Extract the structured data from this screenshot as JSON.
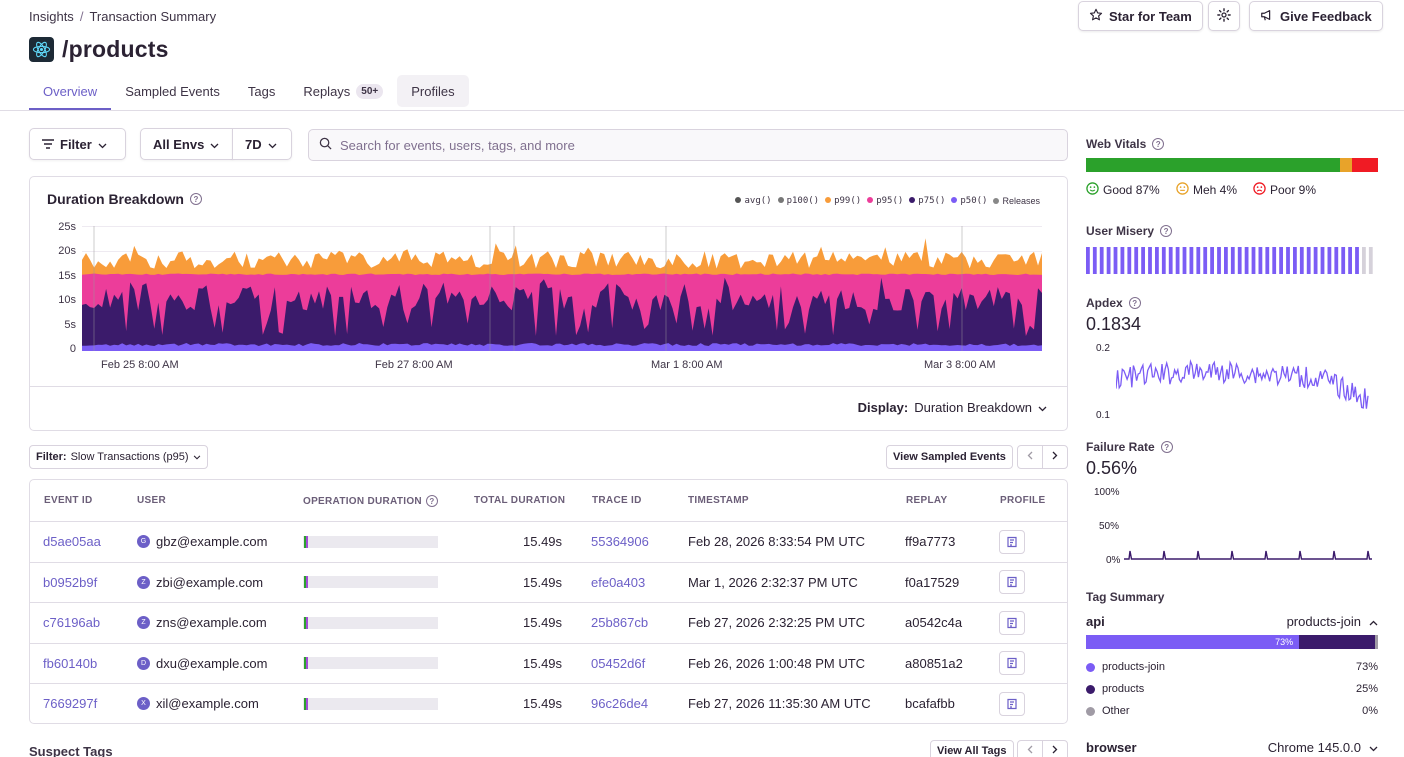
{
  "breadcrumb": {
    "parent": "Insights",
    "separator": "/",
    "current": "Transaction Summary"
  },
  "page": {
    "title": "/products"
  },
  "header_buttons": {
    "star": "Star for Team",
    "feedback": "Give Feedback"
  },
  "tabs": [
    {
      "label": "Overview"
    },
    {
      "label": "Sampled Events"
    },
    {
      "label": "Tags"
    },
    {
      "label": "Replays",
      "badge": "50+"
    },
    {
      "label": "Profiles"
    }
  ],
  "filters": {
    "filter": "Filter",
    "env": "All Envs",
    "period": "7D",
    "search_placeholder": "Search for events, users, tags, and more"
  },
  "chart": {
    "title": "Duration Breakdown",
    "display_label": "Display:",
    "display_value": "Duration Breakdown",
    "legend": [
      "avg()",
      "p100()",
      "p99()",
      "p95()",
      "p75()",
      "p50()",
      "Releases"
    ],
    "colors": {
      "avg": "#555555",
      "p100": "#777777",
      "p99": "#f89c3a",
      "p95": "#ec3d9a",
      "p75": "#3b1b6b",
      "p50": "#7b5cf5",
      "releases": "#888888"
    }
  },
  "chart_data": {
    "type": "area",
    "title": "Duration Breakdown",
    "y_ticks": [
      "25s",
      "20s",
      "15s",
      "10s",
      "5s",
      "0"
    ],
    "x_ticks": [
      "Feb 25 8:00 AM",
      "Feb 27 8:00 AM",
      "Mar 1 8:00 AM",
      "Mar 3 8:00 AM"
    ],
    "ylim": [
      0,
      25
    ],
    "series": [
      {
        "name": "p99()",
        "approx_level": 17
      },
      {
        "name": "p95()",
        "approx_level": 15
      },
      {
        "name": "p75()",
        "approx_level": 6
      },
      {
        "name": "p50()",
        "approx_level": 1
      }
    ]
  },
  "table": {
    "filter_label": "Filter:",
    "filter_value": "Slow Transactions (p95)",
    "view_button": "View Sampled Events",
    "headers": [
      "Event ID",
      "User",
      "Operation Duration",
      "Total Duration",
      "Trace ID",
      "Timestamp",
      "Replay",
      "Profile"
    ],
    "rows": [
      {
        "event_id": "d5ae05aa",
        "avatar": "G",
        "user": "gbz@example.com",
        "total": "15.49s",
        "trace": "55364906",
        "timestamp": "Feb 28, 2026 8:33:54 PM UTC",
        "replay": "ff9a7773"
      },
      {
        "event_id": "b0952b9f",
        "avatar": "Z",
        "user": "zbi@example.com",
        "total": "15.49s",
        "trace": "efe0a403",
        "timestamp": "Mar 1, 2026 2:32:37 PM UTC",
        "replay": "f0a17529"
      },
      {
        "event_id": "c76196ab",
        "avatar": "Z",
        "user": "zns@example.com",
        "total": "15.49s",
        "trace": "25b867cb",
        "timestamp": "Feb 27, 2026 2:32:25 PM UTC",
        "replay": "a0542c4a"
      },
      {
        "event_id": "fb60140b",
        "avatar": "D",
        "user": "dxu@example.com",
        "total": "15.49s",
        "trace": "05452d6f",
        "timestamp": "Feb 26, 2026 1:00:48 PM UTC",
        "replay": "a80851a2"
      },
      {
        "event_id": "7669297f",
        "avatar": "X",
        "user": "xil@example.com",
        "total": "15.49s",
        "trace": "96c26de4",
        "timestamp": "Feb 27, 2026 11:35:30 AM UTC",
        "replay": "bcafafbb"
      }
    ]
  },
  "suspect": {
    "title": "Suspect Tags",
    "button": "View All Tags"
  },
  "sidebar": {
    "web_vitals": {
      "label": "Web Vitals",
      "good": "Good 87%",
      "meh": "Meh 4%",
      "poor": "Poor 9%",
      "good_pct": 87,
      "meh_pct": 4,
      "poor_pct": 9
    },
    "user_misery": {
      "label": "User Misery"
    },
    "apdex": {
      "label": "Apdex",
      "value": "0.1834",
      "y_high": "0.2",
      "y_low": "0.1"
    },
    "failure_rate": {
      "label": "Failure Rate",
      "value": "0.56%",
      "y_ticks": [
        "100%",
        "50%",
        "0%"
      ]
    },
    "tag_summary": {
      "label": "Tag Summary",
      "tag": "api",
      "top_value": "products-join",
      "bar_label": "73%",
      "values": [
        {
          "name": "products-join",
          "pct": "73%",
          "color": "#7b5cf5"
        },
        {
          "name": "products",
          "pct": "25%",
          "color": "#3b1b6b"
        },
        {
          "name": "Other",
          "pct": "0%",
          "color": "#a09ba5"
        }
      ],
      "next_tag": "browser",
      "next_value": "Chrome 145.0.0"
    }
  }
}
